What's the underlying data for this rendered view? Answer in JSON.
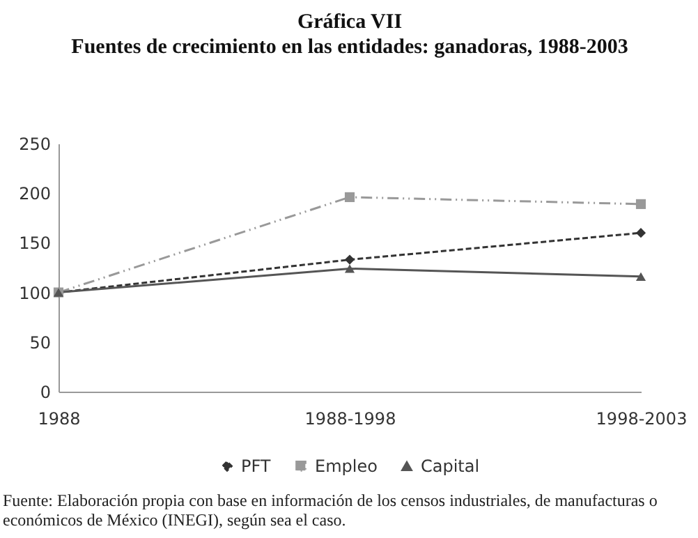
{
  "chart_data": {
    "type": "line",
    "title": "Gráfica VII",
    "subtitle": "Fuentes de crecimiento en las entidades: ganadoras, 1988-2003",
    "categories": [
      "1988",
      "1988-1998",
      "1998-2003"
    ],
    "series": [
      {
        "name": "PFT",
        "color": "#333333",
        "values": [
          100,
          133,
          160
        ],
        "marker": "diamond",
        "line_style": "dashed"
      },
      {
        "name": "Empleo",
        "color": "#999999",
        "values": [
          100,
          196,
          189
        ],
        "marker": "square",
        "line_style": "dashdot"
      },
      {
        "name": "Capital",
        "color": "#555555",
        "values": [
          100,
          124,
          116
        ],
        "marker": "triangle",
        "line_style": "solid"
      }
    ],
    "ylim": [
      0,
      250
    ],
    "yticks": [
      0,
      50,
      100,
      150,
      200,
      250
    ],
    "grid": false,
    "legend": "bottom",
    "annotations": [
      "Fuente: Elaboración propia con base en información de los censos industriales, de manufacturas o económicos de México (INEGI), según sea el caso."
    ]
  }
}
